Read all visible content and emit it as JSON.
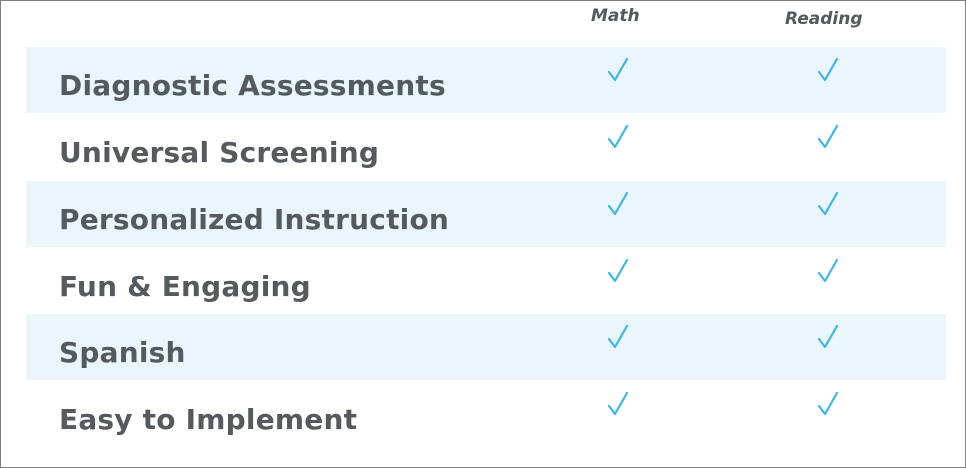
{
  "columns": {
    "math": "Math",
    "reading": "Reading"
  },
  "rows": [
    {
      "label": "Diagnostic Assessments",
      "math": true,
      "reading": true
    },
    {
      "label": "Universal Screening",
      "math": true,
      "reading": true
    },
    {
      "label": "Personalized Instruction",
      "math": true,
      "reading": true
    },
    {
      "label": "Fun & Engaging",
      "math": true,
      "reading": true
    },
    {
      "label": "Spanish",
      "math": true,
      "reading": true
    },
    {
      "label": "Easy to Implement",
      "math": true,
      "reading": true
    }
  ],
  "colors": {
    "check": "#3bb6e8",
    "row_shade": "#ebf6fc",
    "text": "#555a5f"
  },
  "icons": {
    "check": "check-icon"
  }
}
